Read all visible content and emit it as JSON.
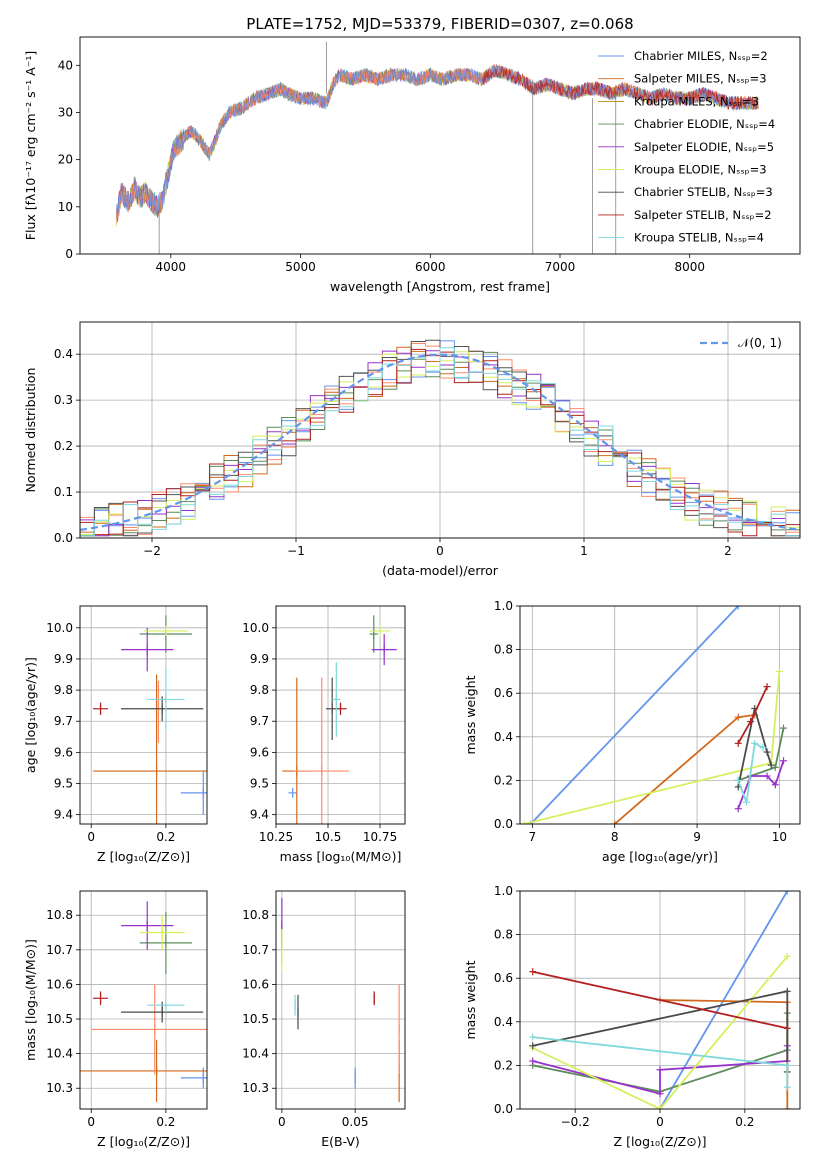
{
  "title": "PLATE=1752, MJD=53379, FIBERID=0307, z=0.068",
  "colors": [
    "#6495ED",
    "#FF8C69",
    "#D2691E",
    "#5B8C5A",
    "#9932CC",
    "#D4F05C",
    "#4A4A4A",
    "#B22222",
    "#7FD8DB"
  ],
  "chart_data": [
    {
      "id": "spectrum",
      "type": "line",
      "xlabel": "wavelength [Angstrom, rest frame]",
      "ylabel": "Flux [fλ10⁻¹⁷ erg cm⁻² s⁻¹ A⁻¹]",
      "xlim": [
        3300,
        8850
      ],
      "ylim": [
        0,
        46
      ],
      "xticks": [
        4000,
        5000,
        6000,
        7000,
        8000
      ],
      "yticks": [
        0,
        10,
        20,
        30,
        40
      ],
      "grid": false,
      "legend_position": "upper-right",
      "legend": [
        "Chabrier MILES, Nₛₛₚ=2",
        "Salpeter MILES, Nₛₛₚ=3",
        "Kroupa MILES, Nₛₛₚ=3",
        "Chabrier ELODIE, Nₛₛₚ=4",
        "Salpeter ELODIE, Nₛₛₚ=5",
        "Kroupa ELODIE, Nₛₛₚ=3",
        "Chabrier STELIB, Nₛₛₚ=3",
        "Salpeter STELIB, Nₛₛₚ=2",
        "Kroupa STELIB, Nₛₛₚ=4"
      ],
      "legend_colors": [
        "#6495ED",
        "#D2691E",
        "#B8860B",
        "#5B8C5A",
        "#9932CC",
        "#D4F05C",
        "#4A4A4A",
        "#B22222",
        "#7FD8DB"
      ],
      "series": {
        "x": [
          3580,
          3620,
          3680,
          3720,
          3760,
          3800,
          3860,
          3900,
          3940,
          3980,
          4020,
          4080,
          4150,
          4200,
          4300,
          4380,
          4450,
          4550,
          4650,
          4750,
          4850,
          4900,
          5000,
          5100,
          5200,
          5250,
          5300,
          5400,
          5500,
          5600,
          5700,
          5800,
          5900,
          6000,
          6100,
          6200,
          6300,
          6400,
          6500,
          6600,
          6700,
          6800,
          6900,
          7000,
          7100,
          7200,
          7300,
          7400,
          7500,
          7600,
          7700,
          7800,
          7900,
          8000,
          8100,
          8200,
          8300,
          8400,
          8500
        ],
        "y": [
          8,
          13,
          11,
          14,
          12,
          13,
          11,
          10,
          12,
          17,
          22,
          24,
          26,
          25,
          21,
          27,
          30,
          31,
          33,
          34,
          35,
          34,
          33,
          33,
          32,
          36,
          38,
          37,
          38,
          37,
          38,
          38,
          37,
          38,
          37,
          38,
          38,
          37,
          39,
          38,
          37,
          35,
          36,
          35,
          34,
          35,
          35,
          34,
          35,
          34,
          33,
          34,
          33,
          33,
          34,
          33,
          32,
          32,
          32
        ]
      },
      "spikes": [
        {
          "x": 5200,
          "top": 45,
          "bottom": 34
        },
        {
          "x": 3910,
          "top": 10,
          "bottom": 0
        },
        {
          "x": 6790,
          "top": 37,
          "bottom": 0
        },
        {
          "x": 7250,
          "top": 33,
          "bottom": 0
        },
        {
          "x": 7430,
          "top": 34,
          "bottom": 0
        }
      ]
    },
    {
      "id": "residuals",
      "type": "histogram",
      "xlabel": "(data-model)/error",
      "ylabel": "Normed distribution",
      "xlim": [
        -2.5,
        2.5
      ],
      "ylim": [
        0,
        0.47
      ],
      "xticks": [
        -2,
        -1,
        0,
        1,
        2
      ],
      "yticks": [
        0.0,
        0.1,
        0.2,
        0.3,
        0.4
      ],
      "grid": true,
      "legend": "𝒩(0, 1)",
      "legend_position": "upper-right",
      "normal": {
        "mu": 0,
        "sigma": 1
      },
      "bin_width": 0.1
    },
    {
      "id": "age-vs-Z",
      "type": "errorbar",
      "xlabel": "Z [log₁₀(Z/Z⊙)]",
      "ylabel": "age  [log₁₀(age/yr)]",
      "xlim": [
        -0.03,
        0.31
      ],
      "ylim": [
        9.37,
        10.07
      ],
      "xticks": [
        0.0,
        0.2
      ],
      "yticks": [
        9.4,
        9.5,
        9.6,
        9.7,
        9.8,
        9.9,
        10.0
      ],
      "points": [
        {
          "x": 0.3,
          "y": 9.47,
          "xerr": 0.06,
          "yerr": 0.07,
          "c": 0
        },
        {
          "x": 0.175,
          "y": 9.54,
          "xerr": 0.17,
          "yerr": 0.31,
          "c": 2
        },
        {
          "x": 0.18,
          "y": 9.73,
          "xerr": 0.0,
          "yerr": 0.1,
          "c": 1
        },
        {
          "x": 0.2,
          "y": 9.98,
          "xerr": 0.07,
          "yerr": 0.06,
          "c": 3
        },
        {
          "x": 0.15,
          "y": 9.93,
          "xerr": 0.07,
          "yerr": 0.07,
          "c": 4
        },
        {
          "x": 0.2,
          "y": 9.99,
          "xerr": 0.06,
          "yerr": 0.01,
          "c": 5
        },
        {
          "x": 0.19,
          "y": 9.74,
          "xerr": 0.11,
          "yerr": 0.04,
          "c": 6
        },
        {
          "x": 0.025,
          "y": 9.74,
          "xerr": 0.02,
          "yerr": 0.02,
          "c": 7
        },
        {
          "x": 0.2,
          "y": 9.77,
          "xerr": 0.05,
          "yerr": 0.1,
          "c": 8
        }
      ]
    },
    {
      "id": "age-vs-mass",
      "type": "errorbar",
      "xlabel": "mass [log₁₀(M/M⊙)]",
      "ylabel": "",
      "xlim": [
        10.25,
        10.87
      ],
      "ylim": [
        9.37,
        10.07
      ],
      "xticks": [
        10.25,
        10.5,
        10.75
      ],
      "yticks": [
        9.4,
        9.5,
        9.6,
        9.7,
        9.8,
        9.9,
        10.0
      ],
      "points": [
        {
          "x": 10.33,
          "y": 9.47,
          "xerr": 0.02,
          "yerr": 0.0,
          "c": 0
        },
        {
          "x": 10.35,
          "y": 9.54,
          "xerr": 0.07,
          "yerr": 0.3,
          "c": 2
        },
        {
          "x": 10.47,
          "y": 9.54,
          "xerr": 0.13,
          "yerr": 0.3,
          "c": 1
        },
        {
          "x": 10.72,
          "y": 9.98,
          "xerr": 0.02,
          "yerr": 0.06,
          "c": 3
        },
        {
          "x": 10.77,
          "y": 9.93,
          "xerr": 0.06,
          "yerr": 0.05,
          "c": 4
        },
        {
          "x": 10.75,
          "y": 9.99,
          "xerr": 0.05,
          "yerr": 0.01,
          "c": 5
        },
        {
          "x": 10.52,
          "y": 9.74,
          "xerr": 0.03,
          "yerr": 0.1,
          "c": 6
        },
        {
          "x": 10.56,
          "y": 9.74,
          "xerr": 0.03,
          "yerr": 0.02,
          "c": 7
        },
        {
          "x": 10.54,
          "y": 9.77,
          "xerr": 0.02,
          "yerr": 0.12,
          "c": 8
        }
      ]
    },
    {
      "id": "mass-weight-vs-age",
      "type": "line",
      "xlabel": "age  [log₁₀(age/yr)]",
      "ylabel": "mass weight",
      "xlim": [
        6.85,
        10.25
      ],
      "ylim": [
        0,
        1.0
      ],
      "xticks": [
        7,
        8,
        9,
        10
      ],
      "yticks": [
        0.0,
        0.2,
        0.4,
        0.6,
        0.8,
        1.0
      ],
      "grid": true,
      "series": [
        {
          "c": 0,
          "points": [
            [
              6.98,
              0.0
            ],
            [
              9.5,
              1.0
            ]
          ]
        },
        {
          "c": 2,
          "points": [
            [
              8.0,
              0.0
            ],
            [
              9.5,
              0.49
            ],
            [
              9.7,
              0.5
            ]
          ]
        },
        {
          "c": 3,
          "points": [
            [
              9.5,
              0.2
            ],
            [
              9.95,
              0.26
            ],
            [
              10.05,
              0.44
            ]
          ]
        },
        {
          "c": 4,
          "points": [
            [
              9.5,
              0.07
            ],
            [
              9.65,
              0.22
            ],
            [
              9.85,
              0.22
            ],
            [
              9.95,
              0.18
            ],
            [
              10.05,
              0.29
            ]
          ]
        },
        {
          "c": 5,
          "points": [
            [
              6.9,
              0.0
            ],
            [
              9.9,
              0.28
            ],
            [
              10.0,
              0.7
            ]
          ]
        },
        {
          "c": 6,
          "points": [
            [
              9.5,
              0.17
            ],
            [
              9.7,
              0.53
            ],
            [
              9.85,
              0.33
            ],
            [
              9.9,
              0.27
            ]
          ]
        },
        {
          "c": 7,
          "points": [
            [
              9.5,
              0.37
            ],
            [
              9.65,
              0.47
            ],
            [
              9.85,
              0.63
            ]
          ]
        },
        {
          "c": 8,
          "points": [
            [
              9.5,
              0.2
            ],
            [
              9.6,
              0.1
            ],
            [
              9.7,
              0.37
            ],
            [
              9.8,
              0.35
            ]
          ]
        }
      ]
    },
    {
      "id": "mass-vs-Z",
      "type": "errorbar",
      "xlabel": "Z [log₁₀(Z/Z⊙)]",
      "ylabel": "mass [log₁₀(M/M⊙)]",
      "xlim": [
        -0.03,
        0.31
      ],
      "ylim": [
        10.24,
        10.87
      ],
      "xticks": [
        0.0,
        0.2
      ],
      "yticks": [
        10.3,
        10.4,
        10.5,
        10.6,
        10.7,
        10.8
      ],
      "points": [
        {
          "x": 0.3,
          "y": 10.33,
          "xerr": 0.06,
          "yerr": 0.03,
          "c": 0
        },
        {
          "x": 0.175,
          "y": 10.35,
          "xerr": 0.3,
          "yerr": 0.09,
          "c": 2
        },
        {
          "x": 0.17,
          "y": 10.47,
          "xerr": 0.17,
          "yerr": 0.13,
          "c": 1
        },
        {
          "x": 0.2,
          "y": 10.72,
          "xerr": 0.07,
          "yerr": 0.09,
          "c": 3
        },
        {
          "x": 0.15,
          "y": 10.77,
          "xerr": 0.07,
          "yerr": 0.07,
          "c": 4
        },
        {
          "x": 0.19,
          "y": 10.75,
          "xerr": 0.06,
          "yerr": 0.05,
          "c": 5
        },
        {
          "x": 0.19,
          "y": 10.52,
          "xerr": 0.11,
          "yerr": 0.03,
          "c": 6
        },
        {
          "x": 0.025,
          "y": 10.56,
          "xerr": 0.02,
          "yerr": 0.02,
          "c": 7
        },
        {
          "x": 0.2,
          "y": 10.54,
          "xerr": 0.05,
          "yerr": 0.02,
          "c": 8
        }
      ]
    },
    {
      "id": "mass-vs-ebv",
      "type": "errorbar",
      "xlabel": "E(B-V)",
      "ylabel": "",
      "xlim": [
        -0.004,
        0.084
      ],
      "ylim": [
        10.24,
        10.87
      ],
      "xticks": [
        0.0,
        0.05
      ],
      "yticks": [
        10.3,
        10.4,
        10.5,
        10.6,
        10.7,
        10.8
      ],
      "points": [
        {
          "x": 0.05,
          "y": 10.33,
          "xerr": 0.0,
          "yerr": 0.03,
          "c": 0
        },
        {
          "x": 0.08,
          "y": 10.35,
          "xerr": 0.0,
          "yerr": 0.09,
          "c": 2
        },
        {
          "x": 0.08,
          "y": 10.47,
          "xerr": 0.0,
          "yerr": 0.13,
          "c": 1
        },
        {
          "x": 0.0,
          "y": 10.72,
          "xerr": 0.0,
          "yerr": 0.06,
          "c": 3
        },
        {
          "x": 0.0,
          "y": 10.77,
          "xerr": 0.0,
          "yerr": 0.08,
          "c": 4
        },
        {
          "x": 0.0,
          "y": 10.7,
          "xerr": 0.0,
          "yerr": 0.06,
          "c": 5
        },
        {
          "x": 0.011,
          "y": 10.52,
          "xerr": 0.0,
          "yerr": 0.05,
          "c": 6
        },
        {
          "x": 0.063,
          "y": 10.56,
          "xerr": 0.0,
          "yerr": 0.02,
          "c": 7
        },
        {
          "x": 0.009,
          "y": 10.54,
          "xerr": 0.0,
          "yerr": 0.03,
          "c": 8
        }
      ]
    },
    {
      "id": "mass-weight-vs-Z",
      "type": "line",
      "xlabel": "Z [log₁₀(Z/Z⊙)]",
      "ylabel": "mass weight",
      "xlim": [
        -0.33,
        0.33
      ],
      "ylim": [
        0,
        1.0
      ],
      "xticks": [
        -0.2,
        0.0,
        0.2
      ],
      "yticks": [
        0.0,
        0.2,
        0.4,
        0.6,
        0.8,
        1.0
      ],
      "grid": true,
      "series": [
        {
          "c": 0,
          "points": [
            [
              0.0,
              0.0
            ],
            [
              0.3,
              1.0
            ]
          ]
        },
        {
          "c": 2,
          "points": [
            [
              0.0,
              0.5
            ],
            [
              0.3,
              0.49
            ],
            [
              0.3,
              0.0
            ]
          ]
        },
        {
          "c": 3,
          "points": [
            [
              -0.3,
              0.2
            ],
            [
              0.0,
              0.08
            ],
            [
              0.3,
              0.27
            ],
            [
              0.3,
              0.44
            ]
          ]
        },
        {
          "c": 4,
          "points": [
            [
              -0.3,
              0.22
            ],
            [
              0.0,
              0.07
            ],
            [
              0.0,
              0.18
            ],
            [
              0.3,
              0.22
            ],
            [
              0.3,
              0.29
            ]
          ]
        },
        {
          "c": 5,
          "points": [
            [
              -0.3,
              0.28
            ],
            [
              0.0,
              0.0
            ],
            [
              0.3,
              0.7
            ]
          ]
        },
        {
          "c": 6,
          "points": [
            [
              -0.3,
              0.29
            ],
            [
              0.3,
              0.54
            ],
            [
              0.3,
              0.17
            ]
          ]
        },
        {
          "c": 7,
          "points": [
            [
              -0.3,
              0.63
            ],
            [
              0.3,
              0.37
            ]
          ]
        },
        {
          "c": 8,
          "points": [
            [
              -0.3,
              0.33
            ],
            [
              0.3,
              0.2
            ],
            [
              0.3,
              0.1
            ]
          ]
        }
      ]
    }
  ]
}
